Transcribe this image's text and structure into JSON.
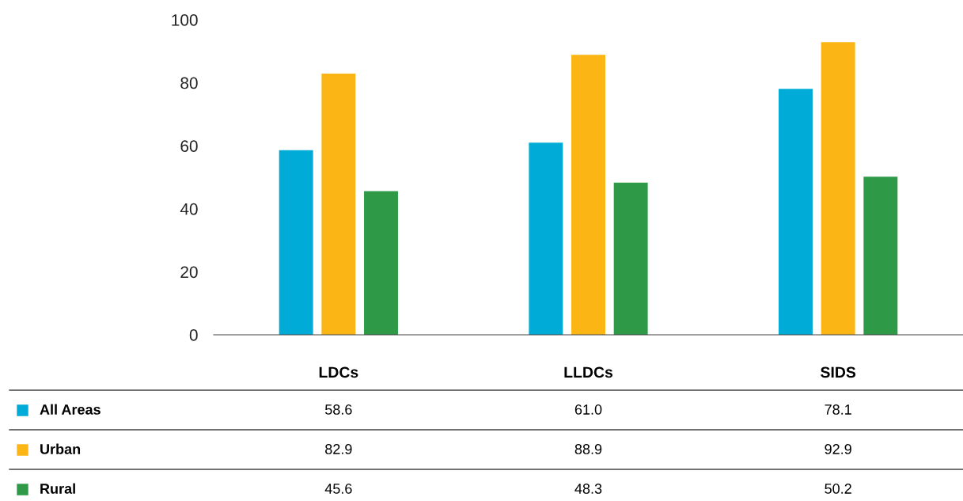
{
  "chart_data": {
    "type": "bar",
    "categories": [
      "LDCs",
      "LLDCs",
      "SIDS"
    ],
    "series": [
      {
        "name": "All Areas",
        "color": "#00acd7",
        "values": [
          58.6,
          61.0,
          78.1
        ],
        "value_labels": [
          "58.6",
          "61.0",
          "78.1"
        ]
      },
      {
        "name": "Urban",
        "color": "#fbb616",
        "values": [
          82.9,
          88.9,
          92.9
        ],
        "value_labels": [
          "82.9",
          "88.9",
          "92.9"
        ]
      },
      {
        "name": "Rural",
        "color": "#2e9a48",
        "values": [
          45.6,
          48.3,
          50.2
        ],
        "value_labels": [
          "45.6",
          "48.3",
          "50.2"
        ]
      }
    ],
    "ylim": [
      0,
      100
    ],
    "yticks": [
      0,
      20,
      40,
      60,
      80,
      100
    ],
    "grid": false,
    "legend": "bottom left"
  }
}
